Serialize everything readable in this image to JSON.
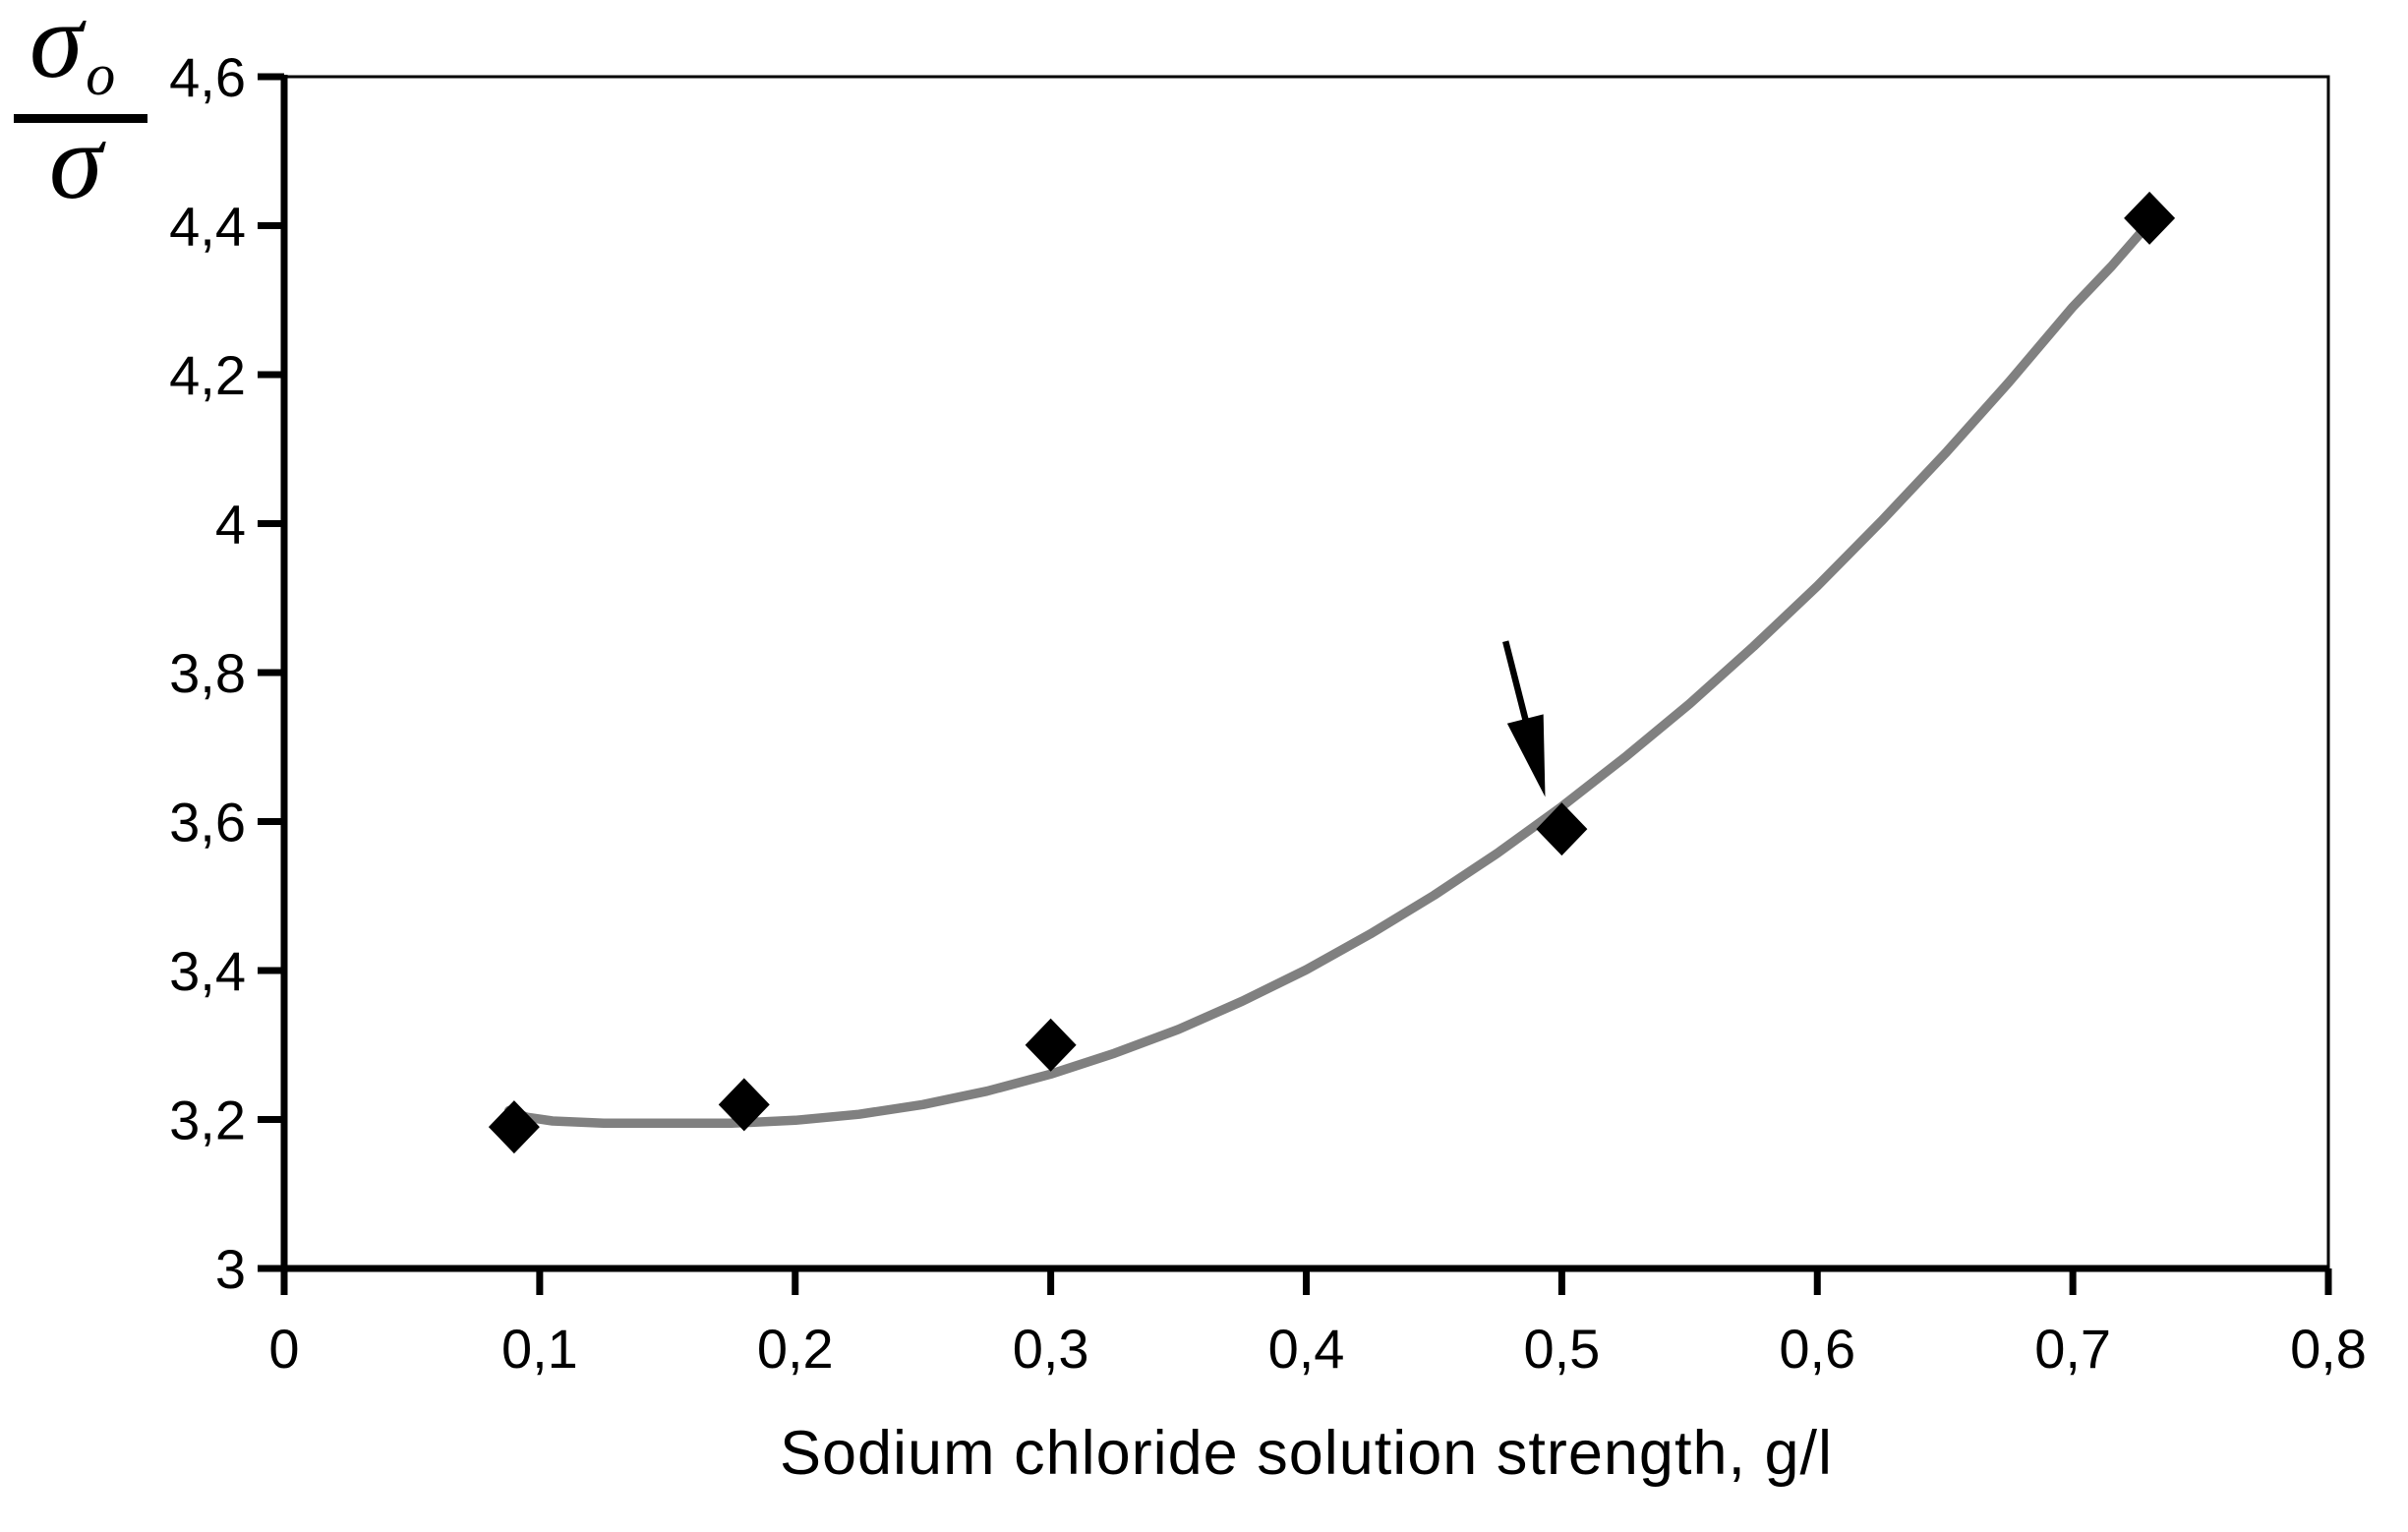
{
  "chart_data": {
    "type": "scatter",
    "title": "",
    "xlabel": "Sodium chloride solution strength, g/l",
    "ylabel": {
      "numerator": "σ",
      "numerator_subscript": "o",
      "denominator": "σ"
    },
    "xlim": [
      0,
      0.8
    ],
    "ylim": [
      3.0,
      4.6
    ],
    "grid": false,
    "legend": null,
    "x_ticks": [
      0,
      0.1,
      0.2,
      0.3,
      0.4,
      0.5,
      0.6,
      0.7,
      0.8
    ],
    "x_tick_labels": [
      "0",
      "0,1",
      "0,2",
      "0,3",
      "0,4",
      "0,5",
      "0,6",
      "0,7",
      "0,8"
    ],
    "y_ticks": [
      3,
      3.2,
      3.4,
      3.6,
      3.8,
      4,
      4.2,
      4.4,
      4.6
    ],
    "y_tick_labels": [
      "3",
      "3,2",
      "3,4",
      "3,6",
      "3,8",
      "4",
      "4,2",
      "4,4",
      "4,6"
    ],
    "series": [
      {
        "name": "measured-points",
        "marker": "diamond",
        "color": "#000000",
        "x": [
          0.09,
          0.18,
          0.3,
          0.5,
          0.73
        ],
        "y": [
          3.19,
          3.22,
          3.3,
          3.59,
          4.41
        ]
      }
    ],
    "trendline": {
      "color": "#808080",
      "points": [
        [
          0.088,
          3.212
        ],
        [
          0.095,
          3.203
        ],
        [
          0.105,
          3.198
        ],
        [
          0.125,
          3.195
        ],
        [
          0.15,
          3.195
        ],
        [
          0.175,
          3.195
        ],
        [
          0.2,
          3.199
        ],
        [
          0.225,
          3.207
        ],
        [
          0.25,
          3.22
        ],
        [
          0.275,
          3.238
        ],
        [
          0.3,
          3.261
        ],
        [
          0.325,
          3.289
        ],
        [
          0.35,
          3.321
        ],
        [
          0.375,
          3.359
        ],
        [
          0.4,
          3.401
        ],
        [
          0.425,
          3.449
        ],
        [
          0.45,
          3.501
        ],
        [
          0.475,
          3.558
        ],
        [
          0.5,
          3.62
        ],
        [
          0.525,
          3.687
        ],
        [
          0.55,
          3.758
        ],
        [
          0.575,
          3.835
        ],
        [
          0.6,
          3.916
        ],
        [
          0.625,
          4.003
        ],
        [
          0.65,
          4.094
        ],
        [
          0.675,
          4.19
        ],
        [
          0.7,
          4.291
        ],
        [
          0.715,
          4.345
        ],
        [
          0.729,
          4.4
        ]
      ]
    },
    "annotation_arrow": {
      "color": "#000000",
      "from_xy": [
        0.478,
        3.842
      ],
      "to_xy": [
        0.4935,
        3.633
      ]
    },
    "colors": {
      "axis": "#000000",
      "text": "#000000",
      "marker": "#000000",
      "trendline": "#808080",
      "background": "#ffffff"
    }
  }
}
